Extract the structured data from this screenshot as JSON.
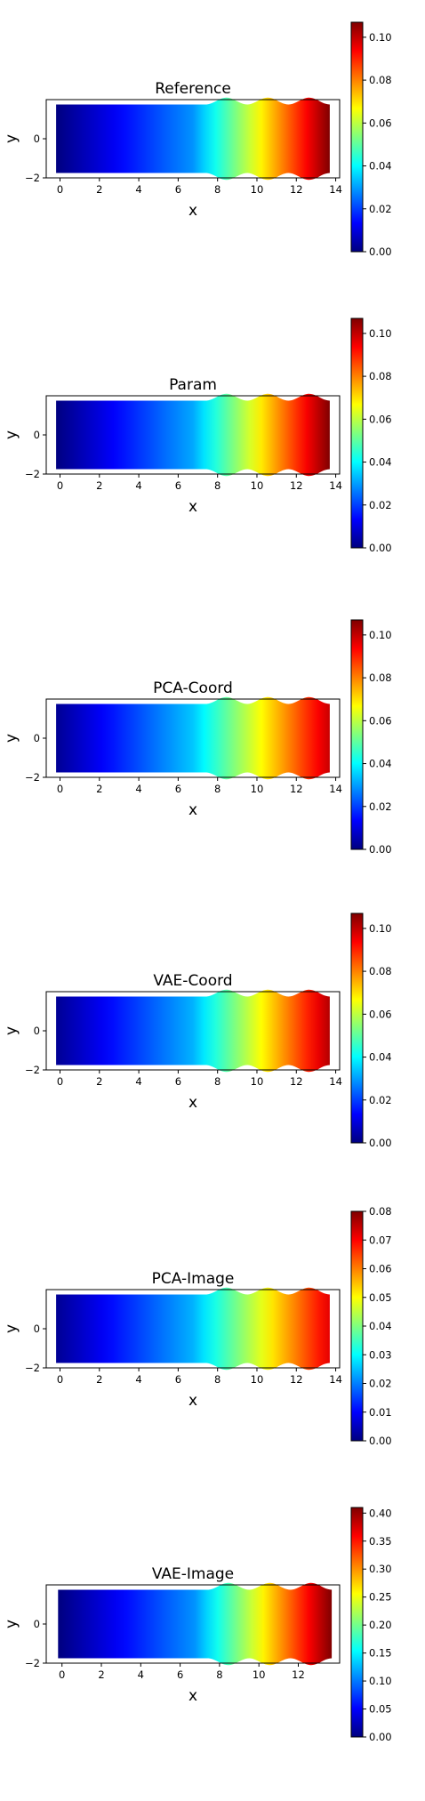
{
  "colormap": "jet",
  "colormap_stops": [
    "#00007f",
    "#0000ff",
    "#007fff",
    "#00ffff",
    "#7fff7f",
    "#ffff00",
    "#ff7f00",
    "#ff0000",
    "#7f0000"
  ],
  "chart_data": [
    {
      "type": "heatmap",
      "title": "Reference",
      "xlabel": "x",
      "ylabel": "y",
      "xticks": [
        "0",
        "2",
        "4",
        "6",
        "8",
        "10",
        "12",
        "14"
      ],
      "yticks": [
        "−2",
        "0"
      ],
      "xlim": [
        -0.7,
        14.2
      ],
      "ylim": [
        -2.0,
        2.0
      ],
      "colorbar": {
        "range": [
          0,
          0.107
        ],
        "ticks": [
          "0.00",
          "0.02",
          "0.04",
          "0.06",
          "0.08",
          "0.10"
        ],
        "tick_values": [
          0,
          0.02,
          0.04,
          0.06,
          0.08,
          0.1
        ]
      },
      "field": {
        "x_start": -0.2,
        "x_end": 13.7,
        "x_bulge_start": 7.4,
        "bulge_period": 2.1,
        "value_min": 0,
        "value_max": 0.107,
        "profile": [
          [
            0,
            0
          ],
          [
            0.5,
            0.27
          ],
          [
            1,
            1
          ]
        ]
      }
    },
    {
      "type": "heatmap",
      "title": "Param",
      "xlabel": "x",
      "ylabel": "y",
      "xticks": [
        "0",
        "2",
        "4",
        "6",
        "8",
        "10",
        "12",
        "14"
      ],
      "yticks": [
        "−2",
        "0"
      ],
      "xlim": [
        -0.7,
        14.2
      ],
      "ylim": [
        -2.0,
        2.0
      ],
      "colorbar": {
        "range": [
          0,
          0.107
        ],
        "ticks": [
          "0.00",
          "0.02",
          "0.04",
          "0.06",
          "0.08",
          "0.10"
        ],
        "tick_values": [
          0,
          0.02,
          0.04,
          0.06,
          0.08,
          0.1
        ]
      },
      "field": {
        "x_start": -0.2,
        "x_end": 13.7,
        "x_bulge_start": 7.4,
        "bulge_period": 2.1,
        "value_min": 0,
        "value_max": 0.107,
        "profile": [
          [
            0,
            0
          ],
          [
            0.5,
            0.29
          ],
          [
            1,
            1
          ]
        ]
      }
    },
    {
      "type": "heatmap",
      "title": "PCA-Coord",
      "xlabel": "x",
      "ylabel": "y",
      "xticks": [
        "0",
        "2",
        "4",
        "6",
        "8",
        "10",
        "12",
        "14"
      ],
      "yticks": [
        "−2",
        "0"
      ],
      "xlim": [
        -0.7,
        14.2
      ],
      "ylim": [
        -2.0,
        2.0
      ],
      "colorbar": {
        "range": [
          0,
          0.107
        ],
        "ticks": [
          "0.00",
          "0.02",
          "0.04",
          "0.06",
          "0.08",
          "0.10"
        ],
        "tick_values": [
          0,
          0.02,
          0.04,
          0.06,
          0.08,
          0.1
        ]
      },
      "field": {
        "x_start": -0.2,
        "x_end": 13.7,
        "x_bulge_start": 7.4,
        "bulge_period": 2.1,
        "value_min": 0,
        "value_max": 0.107,
        "profile": [
          [
            0,
            0.02
          ],
          [
            0.5,
            0.32
          ],
          [
            1,
            0.93
          ]
        ]
      }
    },
    {
      "type": "heatmap",
      "title": "VAE-Coord",
      "xlabel": "x",
      "ylabel": "y",
      "xticks": [
        "0",
        "2",
        "4",
        "6",
        "8",
        "10",
        "12",
        "14"
      ],
      "yticks": [
        "−2",
        "0"
      ],
      "xlim": [
        -0.7,
        14.2
      ],
      "ylim": [
        -2.0,
        2.0
      ],
      "colorbar": {
        "range": [
          0,
          0.107
        ],
        "ticks": [
          "0.00",
          "0.02",
          "0.04",
          "0.06",
          "0.08",
          "0.10"
        ],
        "tick_values": [
          0,
          0.02,
          0.04,
          0.06,
          0.08,
          0.1
        ]
      },
      "field": {
        "x_start": -0.2,
        "x_end": 13.7,
        "x_bulge_start": 7.4,
        "bulge_period": 2.1,
        "value_min": 0,
        "value_max": 0.107,
        "profile": [
          [
            0,
            0.02
          ],
          [
            0.5,
            0.3
          ],
          [
            1,
            0.95
          ]
        ]
      }
    },
    {
      "type": "heatmap",
      "title": "PCA-Image",
      "xlabel": "x",
      "ylabel": "y",
      "xticks": [
        "0",
        "2",
        "4",
        "6",
        "8",
        "10",
        "12",
        "14"
      ],
      "yticks": [
        "−2",
        "0"
      ],
      "xlim": [
        -0.7,
        14.2
      ],
      "ylim": [
        -2.0,
        2.0
      ],
      "colorbar": {
        "range": [
          0,
          0.08
        ],
        "ticks": [
          "0.00",
          "0.01",
          "0.02",
          "0.03",
          "0.04",
          "0.05",
          "0.06",
          "0.07",
          "0.08"
        ],
        "tick_values": [
          0,
          0.01,
          0.02,
          0.03,
          0.04,
          0.05,
          0.06,
          0.07,
          0.08
        ]
      },
      "field": {
        "x_start": -0.2,
        "x_end": 13.7,
        "x_bulge_start": 7.4,
        "bulge_period": 2.1,
        "value_min": 0,
        "value_max": 0.08,
        "profile": [
          [
            0,
            0.02
          ],
          [
            0.5,
            0.3
          ],
          [
            1,
            0.9
          ]
        ]
      }
    },
    {
      "type": "heatmap",
      "title": "VAE-Image",
      "xlabel": "x",
      "ylabel": "y",
      "xticks": [
        "0",
        "2",
        "4",
        "6",
        "8",
        "10",
        "12"
      ],
      "yticks": [
        "−2",
        "0"
      ],
      "xlim": [
        -0.8,
        14.1
      ],
      "ylim": [
        -2.0,
        2.0
      ],
      "colorbar": {
        "range": [
          0,
          0.41
        ],
        "ticks": [
          "0.00",
          "0.05",
          "0.10",
          "0.15",
          "0.20",
          "0.25",
          "0.30",
          "0.35",
          "0.40"
        ],
        "tick_values": [
          0,
          0.05,
          0.1,
          0.15,
          0.2,
          0.25,
          0.3,
          0.35,
          0.4
        ]
      },
      "field": {
        "x_start": -0.2,
        "x_end": 13.7,
        "x_bulge_start": 7.4,
        "bulge_period": 2.1,
        "value_min": 0,
        "value_max": 0.41,
        "profile": [
          [
            0,
            0
          ],
          [
            0.5,
            0.27
          ],
          [
            1,
            1
          ]
        ]
      }
    }
  ]
}
